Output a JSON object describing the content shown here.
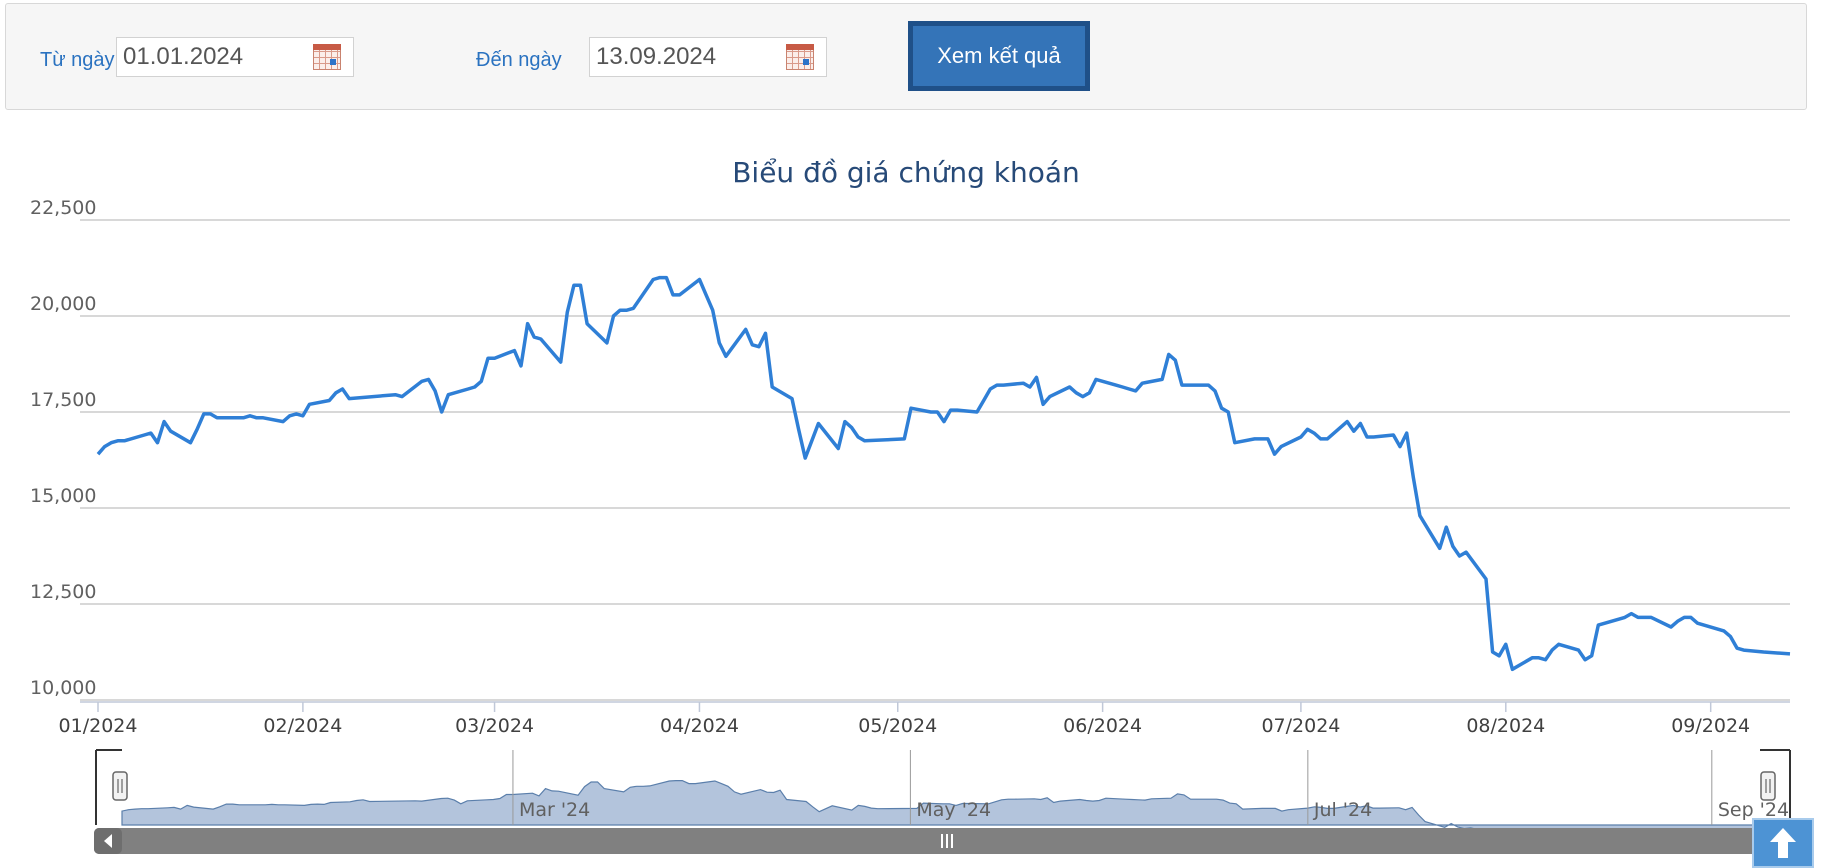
{
  "filters": {
    "from_label": "Từ ngày",
    "from_value": "01.01.2024",
    "to_label": "Đến ngày",
    "to_value": "13.09.2024",
    "submit_label": "Xem kết quả"
  },
  "colors": {
    "line": "#2f7fd6",
    "grid": "#cccccc",
    "navigator_fill": "#b3c4dc",
    "navigator_line": "#5b7fab",
    "scrollbar": "#808080",
    "accent_button": "#3474b8"
  },
  "icons": {
    "calendar": "calendar-icon",
    "scroll_top": "arrow-up-icon",
    "scroll_left": "chevron-left-icon",
    "grip": "grip-icon"
  },
  "chart_data": {
    "type": "line",
    "title": "Biểu đồ giá chứng khoán",
    "xlabel": "",
    "ylabel": "",
    "x_range": [
      "2024-01-01",
      "2024-09-13"
    ],
    "ylim": [
      10000,
      22500
    ],
    "yticks": [
      10000,
      12500,
      15000,
      17500,
      20000,
      22500
    ],
    "ytick_labels": [
      "10,000",
      "12,500",
      "15,000",
      "17,500",
      "20,000",
      "22,500"
    ],
    "xticks": [
      {
        "date": "2024-01-01",
        "label": "01/2024"
      },
      {
        "date": "2024-02-01",
        "label": "02/2024"
      },
      {
        "date": "2024-03-01",
        "label": "03/2024"
      },
      {
        "date": "2024-04-01",
        "label": "04/2024"
      },
      {
        "date": "2024-05-01",
        "label": "05/2024"
      },
      {
        "date": "2024-06-01",
        "label": "06/2024"
      },
      {
        "date": "2024-07-01",
        "label": "07/2024"
      },
      {
        "date": "2024-08-01",
        "label": "08/2024"
      },
      {
        "date": "2024-09-01",
        "label": "09/2024"
      }
    ],
    "grid": true,
    "legend": "none",
    "navigator_ticks": [
      {
        "date": "2024-03-01",
        "label": "Mar '24"
      },
      {
        "date": "2024-05-01",
        "label": "May '24"
      },
      {
        "date": "2024-07-01",
        "label": "Jul '24"
      },
      {
        "date": "2024-09-01",
        "label": "Sep '24"
      }
    ],
    "series": [
      {
        "points": [
          [
            "2024-01-01",
            16400
          ],
          [
            "2024-01-02",
            16600
          ],
          [
            "2024-01-03",
            16700
          ],
          [
            "2024-01-04",
            16750
          ],
          [
            "2024-01-05",
            16750
          ],
          [
            "2024-01-08",
            16900
          ],
          [
            "2024-01-09",
            16950
          ],
          [
            "2024-01-10",
            16700
          ],
          [
            "2024-01-11",
            17250
          ],
          [
            "2024-01-12",
            17000
          ],
          [
            "2024-01-15",
            16700
          ],
          [
            "2024-01-16",
            17050
          ],
          [
            "2024-01-17",
            17450
          ],
          [
            "2024-01-18",
            17450
          ],
          [
            "2024-01-19",
            17350
          ],
          [
            "2024-01-22",
            17350
          ],
          [
            "2024-01-23",
            17350
          ],
          [
            "2024-01-24",
            17400
          ],
          [
            "2024-01-25",
            17350
          ],
          [
            "2024-01-26",
            17350
          ],
          [
            "2024-01-29",
            17250
          ],
          [
            "2024-01-30",
            17400
          ],
          [
            "2024-01-31",
            17450
          ],
          [
            "2024-02-01",
            17400
          ],
          [
            "2024-02-02",
            17700
          ],
          [
            "2024-02-05",
            17800
          ],
          [
            "2024-02-06",
            18000
          ],
          [
            "2024-02-07",
            18100
          ],
          [
            "2024-02-08",
            17850
          ],
          [
            "2024-02-15",
            17950
          ],
          [
            "2024-02-16",
            17900
          ],
          [
            "2024-02-19",
            18300
          ],
          [
            "2024-02-20",
            18350
          ],
          [
            "2024-02-21",
            18050
          ],
          [
            "2024-02-22",
            17500
          ],
          [
            "2024-02-23",
            17950
          ],
          [
            "2024-02-26",
            18100
          ],
          [
            "2024-02-27",
            18150
          ],
          [
            "2024-02-28",
            18300
          ],
          [
            "2024-02-29",
            18900
          ],
          [
            "2024-03-01",
            18900
          ],
          [
            "2024-03-04",
            19100
          ],
          [
            "2024-03-05",
            18700
          ],
          [
            "2024-03-06",
            19800
          ],
          [
            "2024-03-07",
            19450
          ],
          [
            "2024-03-08",
            19400
          ],
          [
            "2024-03-11",
            18800
          ],
          [
            "2024-03-12",
            20100
          ],
          [
            "2024-03-13",
            20800
          ],
          [
            "2024-03-14",
            20800
          ],
          [
            "2024-03-15",
            19800
          ],
          [
            "2024-03-18",
            19300
          ],
          [
            "2024-03-19",
            20000
          ],
          [
            "2024-03-20",
            20150
          ],
          [
            "2024-03-21",
            20150
          ],
          [
            "2024-03-22",
            20200
          ],
          [
            "2024-03-25",
            20950
          ],
          [
            "2024-03-26",
            21000
          ],
          [
            "2024-03-27",
            21000
          ],
          [
            "2024-03-28",
            20550
          ],
          [
            "2024-03-29",
            20550
          ],
          [
            "2024-04-01",
            20950
          ],
          [
            "2024-04-02",
            20550
          ],
          [
            "2024-04-03",
            20150
          ],
          [
            "2024-04-04",
            19300
          ],
          [
            "2024-04-05",
            18950
          ],
          [
            "2024-04-08",
            19650
          ],
          [
            "2024-04-09",
            19250
          ],
          [
            "2024-04-10",
            19200
          ],
          [
            "2024-04-11",
            19550
          ],
          [
            "2024-04-12",
            18150
          ],
          [
            "2024-04-15",
            17850
          ],
          [
            "2024-04-16",
            17050
          ],
          [
            "2024-04-17",
            16300
          ],
          [
            "2024-04-19",
            17200
          ],
          [
            "2024-04-22",
            16550
          ],
          [
            "2024-04-23",
            17250
          ],
          [
            "2024-04-24",
            17100
          ],
          [
            "2024-04-25",
            16850
          ],
          [
            "2024-04-26",
            16750
          ],
          [
            "2024-05-02",
            16800
          ],
          [
            "2024-05-03",
            17600
          ],
          [
            "2024-05-06",
            17500
          ],
          [
            "2024-05-07",
            17500
          ],
          [
            "2024-05-08",
            17250
          ],
          [
            "2024-05-09",
            17550
          ],
          [
            "2024-05-10",
            17550
          ],
          [
            "2024-05-13",
            17500
          ],
          [
            "2024-05-14",
            17800
          ],
          [
            "2024-05-15",
            18100
          ],
          [
            "2024-05-16",
            18200
          ],
          [
            "2024-05-17",
            18200
          ],
          [
            "2024-05-20",
            18250
          ],
          [
            "2024-05-21",
            18150
          ],
          [
            "2024-05-22",
            18400
          ],
          [
            "2024-05-23",
            17700
          ],
          [
            "2024-05-24",
            17900
          ],
          [
            "2024-05-27",
            18150
          ],
          [
            "2024-05-28",
            18000
          ],
          [
            "2024-05-29",
            17900
          ],
          [
            "2024-05-30",
            18000
          ],
          [
            "2024-05-31",
            18350
          ],
          [
            "2024-06-03",
            18200
          ],
          [
            "2024-06-04",
            18150
          ],
          [
            "2024-06-05",
            18100
          ],
          [
            "2024-06-06",
            18050
          ],
          [
            "2024-06-07",
            18250
          ],
          [
            "2024-06-10",
            18350
          ],
          [
            "2024-06-11",
            19000
          ],
          [
            "2024-06-12",
            18850
          ],
          [
            "2024-06-13",
            18200
          ],
          [
            "2024-06-14",
            18200
          ],
          [
            "2024-06-17",
            18200
          ],
          [
            "2024-06-18",
            18050
          ],
          [
            "2024-06-19",
            17600
          ],
          [
            "2024-06-20",
            17500
          ],
          [
            "2024-06-21",
            16700
          ],
          [
            "2024-06-24",
            16800
          ],
          [
            "2024-06-25",
            16800
          ],
          [
            "2024-06-26",
            16800
          ],
          [
            "2024-06-27",
            16400
          ],
          [
            "2024-06-28",
            16600
          ],
          [
            "2024-07-01",
            16850
          ],
          [
            "2024-07-02",
            17050
          ],
          [
            "2024-07-03",
            16950
          ],
          [
            "2024-07-04",
            16800
          ],
          [
            "2024-07-05",
            16800
          ],
          [
            "2024-07-08",
            17250
          ],
          [
            "2024-07-09",
            17000
          ],
          [
            "2024-07-10",
            17200
          ],
          [
            "2024-07-11",
            16850
          ],
          [
            "2024-07-12",
            16850
          ],
          [
            "2024-07-15",
            16900
          ],
          [
            "2024-07-16",
            16600
          ],
          [
            "2024-07-17",
            16950
          ],
          [
            "2024-07-18",
            15800
          ],
          [
            "2024-07-19",
            14800
          ],
          [
            "2024-07-22",
            13950
          ],
          [
            "2024-07-23",
            14500
          ],
          [
            "2024-07-24",
            14000
          ],
          [
            "2024-07-25",
            13750
          ],
          [
            "2024-07-26",
            13850
          ],
          [
            "2024-07-29",
            13150
          ],
          [
            "2024-07-30",
            11250
          ],
          [
            "2024-07-31",
            11150
          ],
          [
            "2024-08-01",
            11450
          ],
          [
            "2024-08-02",
            10800
          ],
          [
            "2024-08-05",
            11100
          ],
          [
            "2024-08-06",
            11100
          ],
          [
            "2024-08-07",
            11050
          ],
          [
            "2024-08-08",
            11300
          ],
          [
            "2024-08-09",
            11450
          ],
          [
            "2024-08-12",
            11300
          ],
          [
            "2024-08-13",
            11050
          ],
          [
            "2024-08-14",
            11150
          ],
          [
            "2024-08-15",
            11950
          ],
          [
            "2024-08-16",
            12000
          ],
          [
            "2024-08-19",
            12150
          ],
          [
            "2024-08-20",
            12250
          ],
          [
            "2024-08-21",
            12150
          ],
          [
            "2024-08-22",
            12150
          ],
          [
            "2024-08-23",
            12150
          ],
          [
            "2024-08-26",
            11900
          ],
          [
            "2024-08-27",
            12050
          ],
          [
            "2024-08-28",
            12150
          ],
          [
            "2024-08-29",
            12150
          ],
          [
            "2024-08-30",
            12000
          ],
          [
            "2024-09-03",
            11800
          ],
          [
            "2024-09-04",
            11650
          ],
          [
            "2024-09-05",
            11350
          ],
          [
            "2024-09-06",
            11300
          ],
          [
            "2024-09-09",
            11250
          ],
          [
            "2024-09-13",
            11200
          ]
        ]
      }
    ]
  }
}
